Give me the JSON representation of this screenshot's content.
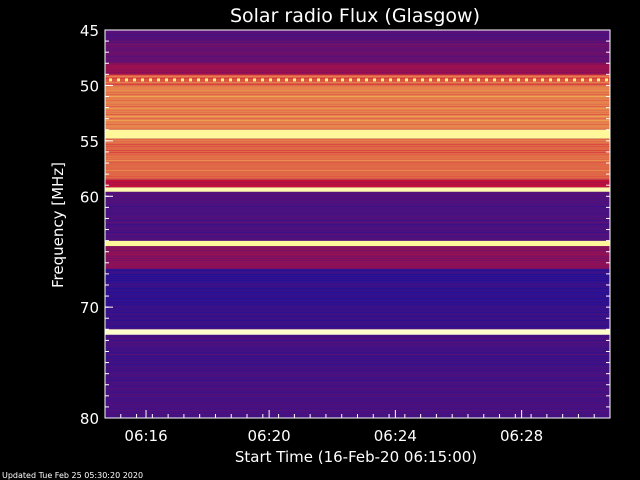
{
  "chart_data": {
    "type": "heatmap",
    "title": "Solar radio Flux (Glasgow)",
    "xlabel": "Start Time (16-Feb-20 06:15:00)",
    "ylabel": "Frequency [MHz]",
    "x_range_minutes": [
      0,
      16
    ],
    "x_ticks": [
      {
        "label": "06:16",
        "minute": 1.3
      },
      {
        "label": "06:20",
        "minute": 5.2
      },
      {
        "label": "06:24",
        "minute": 9.2
      },
      {
        "label": "06:28",
        "minute": 13.2
      }
    ],
    "y_range_mhz": [
      45,
      80
    ],
    "y_ticks": [
      45,
      50,
      55,
      60,
      70,
      80
    ],
    "bands": [
      {
        "from": 45,
        "to": 46,
        "level": 0.25
      },
      {
        "from": 46,
        "to": 48,
        "level": 0.3
      },
      {
        "from": 48,
        "to": 49,
        "level": 0.45
      },
      {
        "from": 49,
        "to": 50,
        "level": 0.7
      },
      {
        "from": 50,
        "to": 54,
        "level": 0.75
      },
      {
        "from": 54,
        "to": 54.8,
        "level": 0.95
      },
      {
        "from": 54.8,
        "to": 58.5,
        "level": 0.72
      },
      {
        "from": 58.5,
        "to": 59.2,
        "level": 0.55
      },
      {
        "from": 59.2,
        "to": 59.6,
        "level": 0.97
      },
      {
        "from": 59.6,
        "to": 64,
        "level": 0.22
      },
      {
        "from": 64,
        "to": 64.5,
        "level": 0.95
      },
      {
        "from": 64.5,
        "to": 66.5,
        "level": 0.4
      },
      {
        "from": 66.5,
        "to": 70,
        "level": 0.15
      },
      {
        "from": 70,
        "to": 72,
        "level": 0.18
      },
      {
        "from": 72,
        "to": 72.5,
        "level": 1.0
      },
      {
        "from": 72.5,
        "to": 80,
        "level": 0.2
      }
    ],
    "colors": {
      "low": "#0011aa",
      "mid": "#cc1133",
      "high": "#ffee66",
      "peak": "#ffffcc"
    }
  },
  "footer": "Updated Tue Feb 25 05:30:20 2020"
}
